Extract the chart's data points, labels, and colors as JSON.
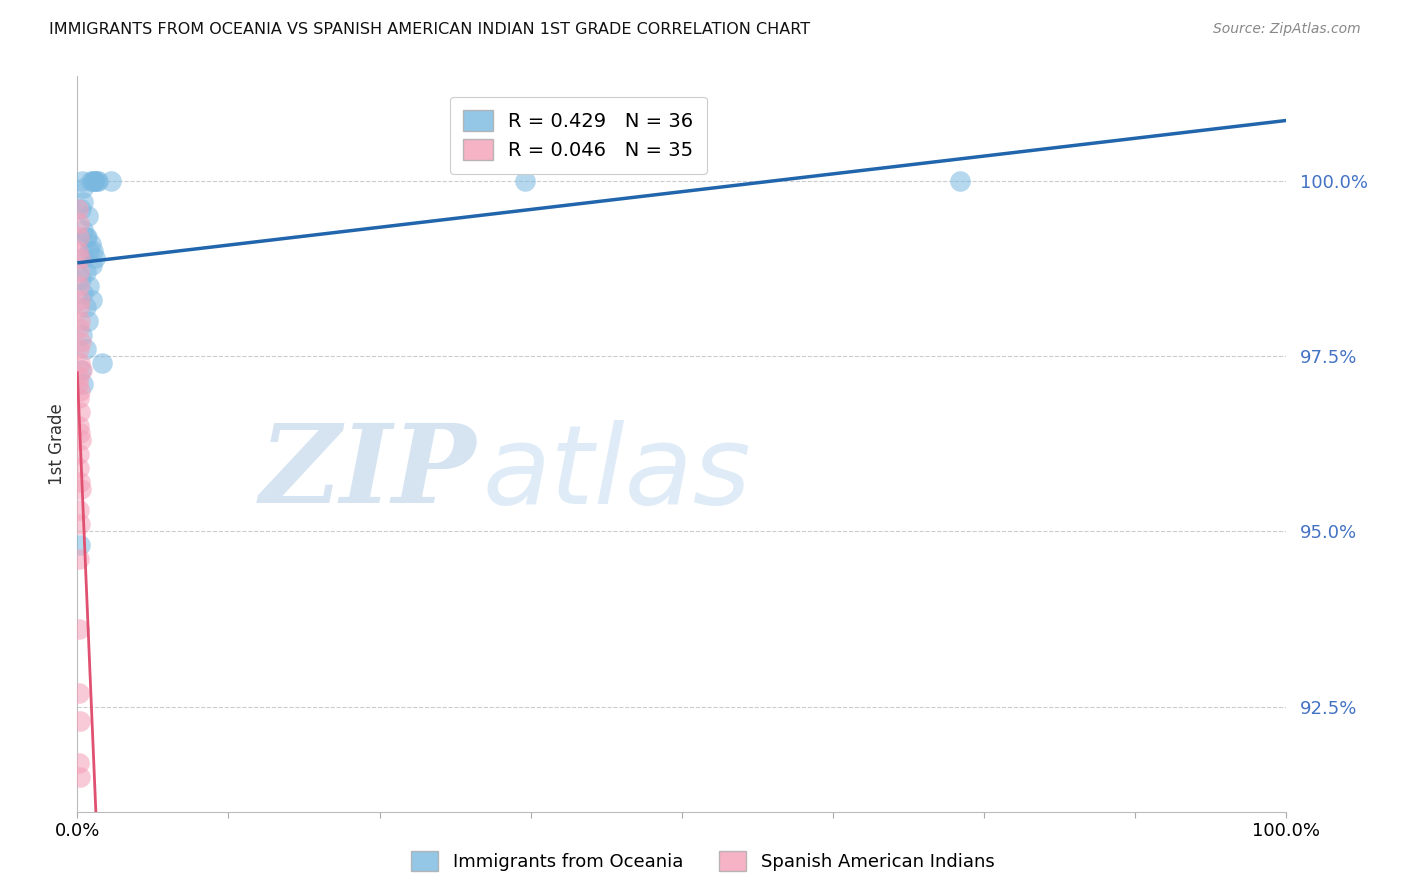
{
  "title": "IMMIGRANTS FROM OCEANIA VS SPANISH AMERICAN INDIAN 1ST GRADE CORRELATION CHART",
  "source": "Source: ZipAtlas.com",
  "ylabel": "1st Grade",
  "yticks": [
    92.5,
    95.0,
    97.5,
    100.0
  ],
  "ytick_labels": [
    "92.5%",
    "95.0%",
    "97.5%",
    "100.0%"
  ],
  "xrange": [
    0.0,
    100.0
  ],
  "yrange": [
    91.0,
    101.5
  ],
  "legend_blue_label": "Immigrants from Oceania",
  "legend_pink_label": "Spanish American Indians",
  "R_blue": 0.429,
  "N_blue": 36,
  "R_pink": 0.046,
  "N_pink": 35,
  "blue_color": "#7ab8e0",
  "pink_color": "#f4a0b8",
  "trend_blue_color": "#2166ac",
  "trend_pink_color": "#e05070",
  "blue_dots": [
    [
      0.4,
      100.0
    ],
    [
      1.1,
      100.0
    ],
    [
      1.3,
      100.0
    ],
    [
      1.4,
      100.0
    ],
    [
      1.5,
      100.0
    ],
    [
      1.6,
      100.0
    ],
    [
      1.7,
      100.0
    ],
    [
      2.8,
      100.0
    ],
    [
      37.0,
      100.0
    ],
    [
      73.0,
      100.0
    ],
    [
      0.5,
      99.9
    ],
    [
      0.3,
      99.6
    ],
    [
      0.9,
      99.5
    ],
    [
      0.5,
      99.3
    ],
    [
      0.8,
      99.2
    ],
    [
      1.1,
      99.1
    ],
    [
      1.3,
      99.0
    ],
    [
      1.5,
      98.9
    ],
    [
      0.7,
      99.2
    ],
    [
      1.0,
      99.0
    ],
    [
      1.2,
      98.8
    ],
    [
      0.4,
      98.9
    ],
    [
      0.7,
      98.7
    ],
    [
      1.0,
      98.5
    ],
    [
      1.2,
      98.3
    ],
    [
      0.3,
      98.6
    ],
    [
      0.5,
      98.4
    ],
    [
      0.7,
      98.2
    ],
    [
      0.9,
      98.0
    ],
    [
      0.4,
      97.8
    ],
    [
      0.7,
      97.6
    ],
    [
      2.0,
      97.4
    ],
    [
      0.3,
      97.3
    ],
    [
      0.5,
      97.1
    ],
    [
      0.2,
      94.8
    ],
    [
      0.5,
      99.7
    ]
  ],
  "pink_dots": [
    [
      0.05,
      99.6
    ],
    [
      0.15,
      99.4
    ],
    [
      0.1,
      99.2
    ],
    [
      0.05,
      99.0
    ],
    [
      0.2,
      98.9
    ],
    [
      0.1,
      98.7
    ],
    [
      0.15,
      98.5
    ],
    [
      0.25,
      98.3
    ],
    [
      0.1,
      98.2
    ],
    [
      0.2,
      98.0
    ],
    [
      0.15,
      97.9
    ],
    [
      0.3,
      97.7
    ],
    [
      0.1,
      97.6
    ],
    [
      0.2,
      97.4
    ],
    [
      0.4,
      97.3
    ],
    [
      0.15,
      97.2
    ],
    [
      0.05,
      97.1
    ],
    [
      0.2,
      97.0
    ],
    [
      0.15,
      96.9
    ],
    [
      0.25,
      96.7
    ],
    [
      0.1,
      96.5
    ],
    [
      0.2,
      96.4
    ],
    [
      0.3,
      96.3
    ],
    [
      0.15,
      96.1
    ],
    [
      0.1,
      95.9
    ],
    [
      0.2,
      95.7
    ],
    [
      0.3,
      95.6
    ],
    [
      0.15,
      95.3
    ],
    [
      0.2,
      95.1
    ],
    [
      0.1,
      94.6
    ],
    [
      0.15,
      93.6
    ],
    [
      0.1,
      92.7
    ],
    [
      0.2,
      92.3
    ],
    [
      0.15,
      91.7
    ],
    [
      0.25,
      91.5
    ]
  ],
  "xtick_positions": [
    0.0,
    12.5,
    25.0,
    37.5,
    50.0,
    62.5,
    75.0,
    87.5,
    100.0
  ]
}
